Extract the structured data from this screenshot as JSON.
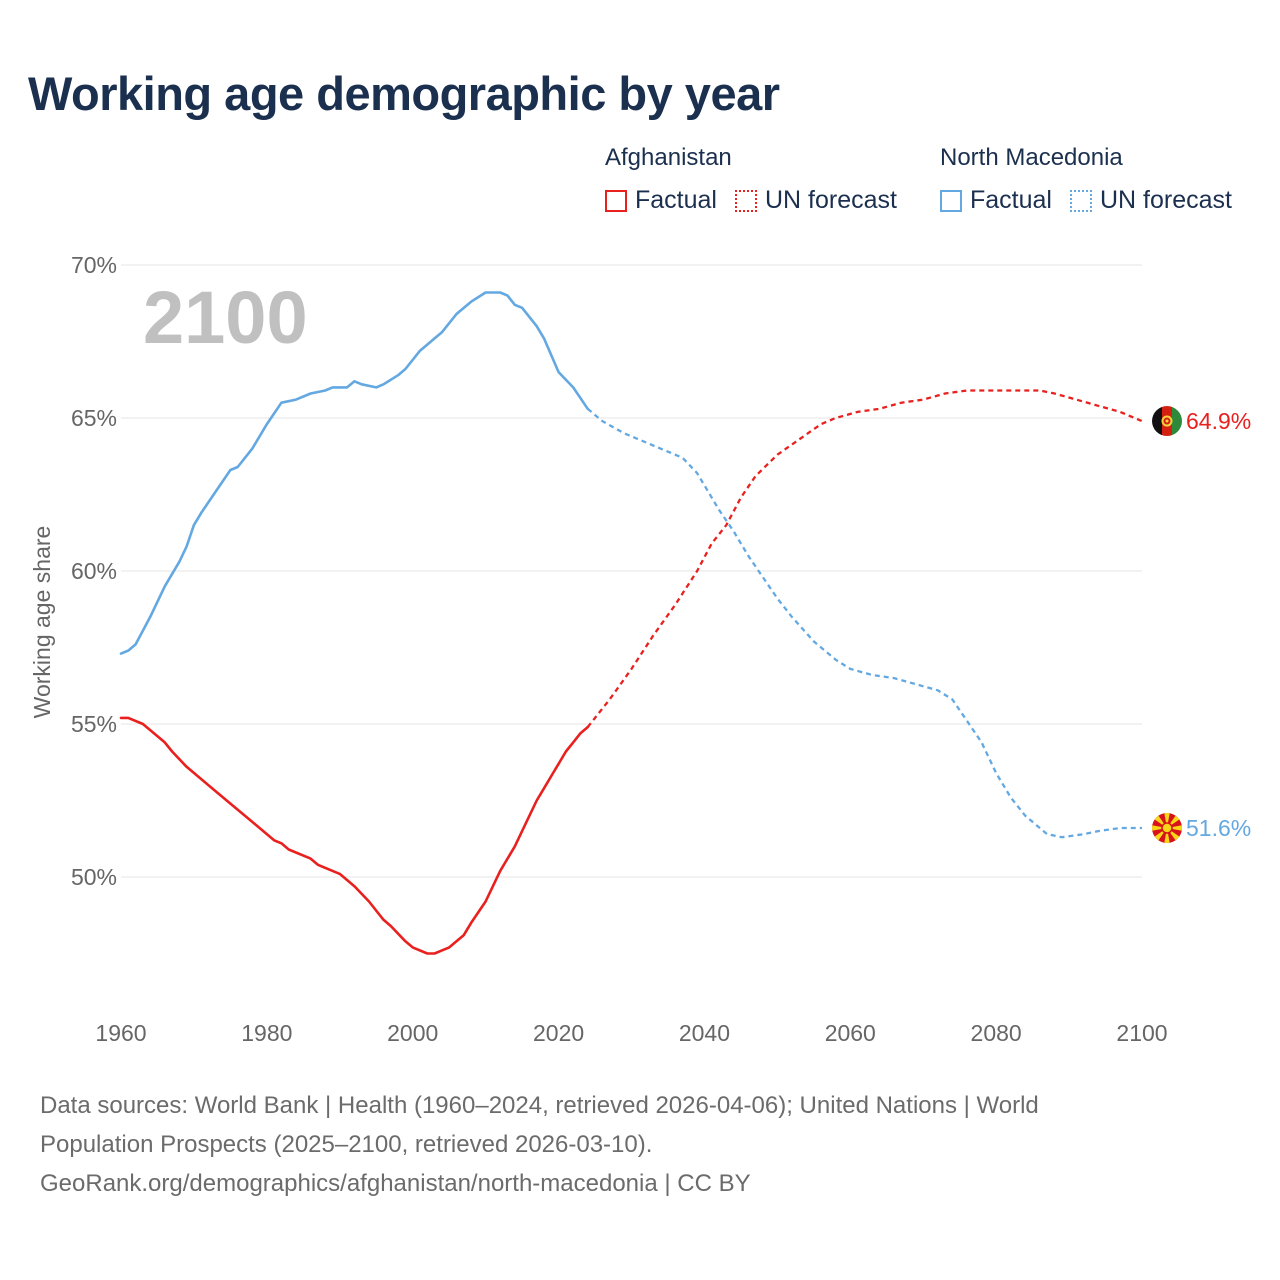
{
  "title": "Working age demographic by year",
  "legend": {
    "groups": [
      {
        "name": "Afghanistan",
        "factual": "Factual",
        "forecast": "UN forecast",
        "color": "#e8211f"
      },
      {
        "name": "North Macedonia",
        "factual": "Factual",
        "forecast": "UN forecast",
        "color": "#64a8e2"
      }
    ]
  },
  "year_watermark": "2100",
  "footer": {
    "line1": "Data sources: World Bank | Health (1960–2024, retrieved 2026-04-06); United Nations | World",
    "line2": "Population Prospects (2025–2100, retrieved 2026-03-10).",
    "line3": "GeoRank.org/demographics/afghanistan/north-macedonia | CC BY"
  },
  "chart_data": {
    "type": "line",
    "title": "Working age demographic by year",
    "xlabel": "",
    "ylabel": "Working age share",
    "xlim": [
      1960,
      2100
    ],
    "ylim": [
      46,
      70
    ],
    "xticks": [
      1960,
      1980,
      2000,
      2020,
      2040,
      2060,
      2080,
      2100
    ],
    "xtick_labels": [
      "1960",
      "1980",
      "2000",
      "2020",
      "2040",
      "2060",
      "2080",
      "2100"
    ],
    "yticks": [
      50,
      55,
      60,
      65,
      70
    ],
    "ytick_labels": [
      "50%",
      "55%",
      "60%",
      "65%",
      "70%"
    ],
    "factual_end_year": 2024,
    "series": [
      {
        "name": "Afghanistan",
        "color": "#e8211f",
        "end_label": "64.9%",
        "flag": "afghanistan-flag",
        "x": [
          1960,
          1961,
          1963,
          1966,
          1967,
          1969,
          1972,
          1975,
          1978,
          1981,
          1982,
          1983,
          1986,
          1987,
          1990,
          1992,
          1994,
          1996,
          1997,
          1999,
          2000,
          2002,
          2003,
          2004,
          2005,
          2007,
          2008,
          2010,
          2011,
          2012,
          2014,
          2015,
          2017,
          2018,
          2019,
          2020,
          2021,
          2022,
          2023,
          2024,
          2027,
          2030,
          2033,
          2036,
          2039,
          2041,
          2043,
          2045,
          2047,
          2050,
          2053,
          2056,
          2058,
          2061,
          2064,
          2067,
          2070,
          2073,
          2076,
          2078,
          2081,
          2084,
          2086,
          2088,
          2091,
          2094,
          2097,
          2100
        ],
        "values": [
          55.2,
          55.2,
          55.0,
          54.4,
          54.1,
          53.6,
          53.0,
          52.4,
          51.8,
          51.2,
          51.1,
          50.9,
          50.6,
          50.4,
          50.1,
          49.7,
          49.2,
          48.6,
          48.4,
          47.9,
          47.7,
          47.5,
          47.5,
          47.6,
          47.7,
          48.1,
          48.5,
          49.2,
          49.7,
          50.2,
          51.0,
          51.5,
          52.5,
          52.9,
          53.3,
          53.7,
          54.1,
          54.4,
          54.7,
          54.9,
          55.8,
          56.8,
          57.9,
          58.9,
          60.0,
          60.9,
          61.5,
          62.4,
          63.1,
          63.8,
          64.3,
          64.8,
          65.0,
          65.2,
          65.3,
          65.5,
          65.6,
          65.8,
          65.9,
          65.9,
          65.9,
          65.9,
          65.9,
          65.8,
          65.6,
          65.4,
          65.2,
          64.9
        ]
      },
      {
        "name": "North Macedonia",
        "color": "#64a8e2",
        "end_label": "51.6%",
        "flag": "north-macedonia-flag",
        "x": [
          1960,
          1961,
          1962,
          1964,
          1966,
          1968,
          1969,
          1970,
          1971,
          1973,
          1975,
          1976,
          1978,
          1980,
          1982,
          1984,
          1986,
          1988,
          1989,
          1991,
          1992,
          1993,
          1995,
          1996,
          1998,
          1999,
          2001,
          2003,
          2004,
          2006,
          2008,
          2010,
          2011,
          2012,
          2013,
          2014,
          2015,
          2017,
          2018,
          2020,
          2022,
          2024,
          2026,
          2029,
          2032,
          2035,
          2037,
          2039,
          2040,
          2042,
          2044,
          2046,
          2048,
          2050,
          2052,
          2055,
          2058,
          2060,
          2063,
          2066,
          2069,
          2072,
          2074,
          2076,
          2078,
          2080,
          2082,
          2084,
          2087,
          2089,
          2092,
          2094,
          2097,
          2100
        ],
        "values": [
          57.3,
          57.4,
          57.6,
          58.5,
          59.5,
          60.3,
          60.8,
          61.5,
          61.9,
          62.6,
          63.3,
          63.4,
          64.0,
          64.8,
          65.5,
          65.6,
          65.8,
          65.9,
          66.0,
          66.0,
          66.2,
          66.1,
          66.0,
          66.1,
          66.4,
          66.6,
          67.2,
          67.6,
          67.8,
          68.4,
          68.8,
          69.1,
          69.1,
          69.1,
          69.0,
          68.7,
          68.6,
          68.0,
          67.6,
          66.5,
          66.0,
          65.3,
          64.9,
          64.5,
          64.2,
          63.9,
          63.7,
          63.2,
          62.8,
          62.0,
          61.3,
          60.5,
          59.8,
          59.1,
          58.5,
          57.7,
          57.1,
          56.8,
          56.6,
          56.5,
          56.3,
          56.1,
          55.8,
          55.1,
          54.4,
          53.4,
          52.6,
          52.0,
          51.4,
          51.3,
          51.4,
          51.5,
          51.6,
          51.6
        ]
      }
    ]
  }
}
